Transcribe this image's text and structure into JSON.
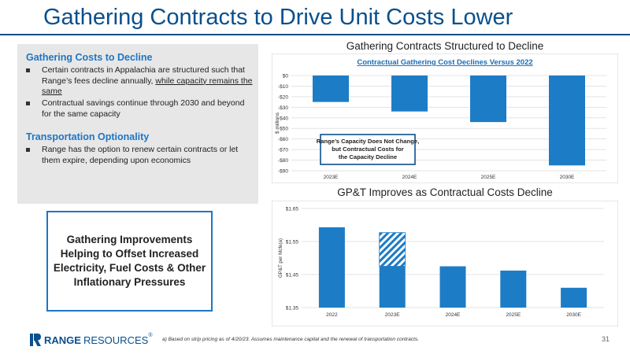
{
  "title": "Gathering Contracts to Drive Unit Costs Lower",
  "left_panel": {
    "section1_heading": "Gathering Costs to Decline",
    "bullet1_pre": "Certain contracts in Appalachia are structured such that Range’s fees decline annually, ",
    "bullet1_underlined": "while capacity remains the same",
    "bullet2": "Contractual savings continue through 2030 and beyond for the same capacity",
    "section2_heading": "Transportation Optionality",
    "bullet3": "Range has the option to renew certain contracts or let them expire, depending upon economics"
  },
  "callout": "Gathering Improvements Helping to Offset Increased Electricity, Fuel Costs & Other Inflationary Pressures",
  "footer": {
    "logo_bold": "RANGE",
    "logo_rest": "RESOURCES",
    "registered": "®",
    "footnote": "a) Based on strip pricing as of 4/20/23. Assumes maintenance capital and the renewal of transportation contracts.",
    "page_number": "31"
  },
  "colors": {
    "brand_blue": "#0a4f8c",
    "bar_blue": "#1d7cc6",
    "accent_blue": "#1f75c4"
  },
  "chart_data": [
    {
      "type": "bar",
      "heading": "Gathering Contracts Structured to Decline",
      "title": "Contractual Gathering Cost Declines Versus 2022",
      "ylabel": "$ millions",
      "categories": [
        "2023E",
        "2024E",
        "2025E",
        "2030E"
      ],
      "values": [
        -25,
        -34,
        -44,
        -85
      ],
      "ylim": [
        -90,
        0
      ],
      "yticks": [
        0,
        -10,
        -20,
        -30,
        -40,
        -50,
        -60,
        -70,
        -80,
        -90
      ],
      "ytick_labels": [
        "$0",
        "-$10",
        "-$20",
        "-$30",
        "-$40",
        "-$50",
        "-$60",
        "-$70",
        "-$80",
        "-$90"
      ],
      "grid": true,
      "annotation": "Range’s Capacity Does Not Change, but Contractual Costs for the Capacity Decline"
    },
    {
      "type": "bar",
      "heading": "GP&T Improves as Contractual Costs Decline",
      "title": "",
      "ylabel": "GP&T per Mcfe(a)",
      "categories": [
        "2022",
        "2023E",
        "2024E",
        "2025E",
        "2030E"
      ],
      "values": [
        1.593,
        1.475,
        1.475,
        1.462,
        1.41
      ],
      "hatched_increment": [
        0,
        0.102,
        0,
        0,
        0
      ],
      "ylim": [
        1.35,
        1.65
      ],
      "yticks": [
        1.35,
        1.45,
        1.55,
        1.65
      ],
      "ytick_labels": [
        "$1.35",
        "$1.45",
        "$1.55",
        "$1.65"
      ],
      "grid": true
    }
  ]
}
